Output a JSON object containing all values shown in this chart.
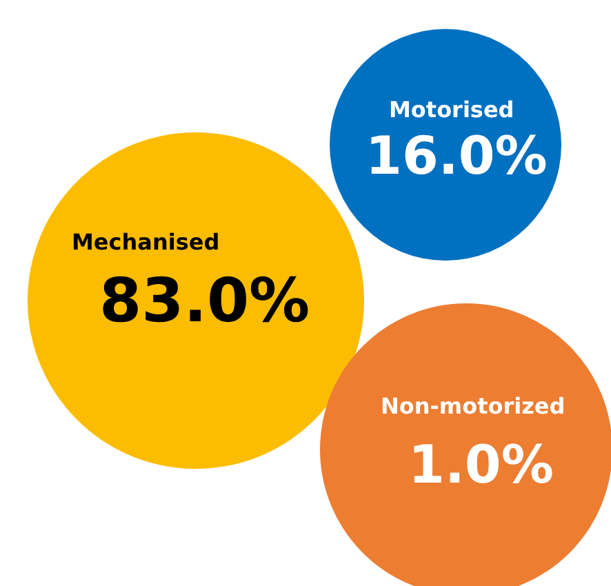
{
  "chart_data": {
    "type": "other",
    "categories": [
      "Mechanised",
      "Motorised",
      "Non-motorized"
    ],
    "values": [
      83.0,
      16.0,
      1.0
    ],
    "value_labels": [
      "83.0%",
      "16.0%",
      "1.0%"
    ],
    "colors": [
      "#fcbc00",
      "#0070c0",
      "#ed7d31"
    ]
  }
}
